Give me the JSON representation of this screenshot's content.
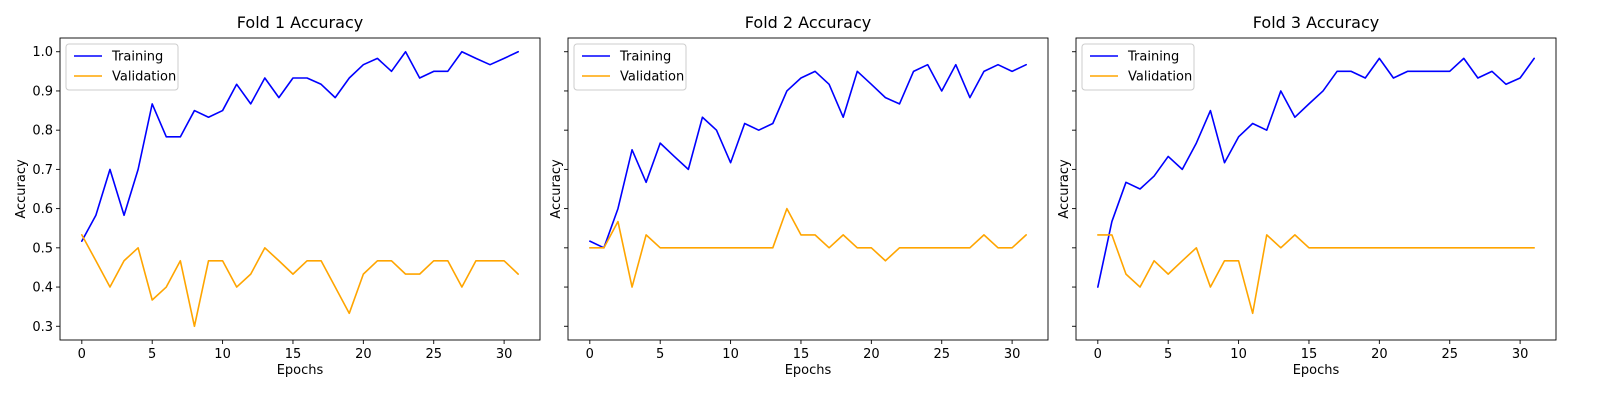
{
  "chart_data": [
    {
      "type": "line",
      "title": "Fold 1 Accuracy",
      "xlabel": "Epochs",
      "ylabel": "Accuracy",
      "xlim": [
        -1.55,
        32.55
      ],
      "ylim": [
        0.265,
        1.035
      ],
      "xticks": [
        0,
        5,
        10,
        15,
        20,
        25,
        30
      ],
      "yticks": [
        0.3,
        0.4,
        0.5,
        0.6,
        0.7,
        0.8,
        0.9,
        1.0
      ],
      "ytick_labels": [
        "0.3",
        "0.4",
        "0.5",
        "0.6",
        "0.7",
        "0.8",
        "0.9",
        "1.0"
      ],
      "grid": false,
      "legend": "top-left",
      "x": [
        0,
        1,
        2,
        3,
        4,
        5,
        6,
        7,
        8,
        9,
        10,
        11,
        12,
        13,
        14,
        15,
        16,
        17,
        18,
        19,
        20,
        21,
        22,
        23,
        24,
        25,
        26,
        27,
        28,
        29,
        30,
        31
      ],
      "series": [
        {
          "name": "Training",
          "color": "#0000ff",
          "values": [
            0.517,
            0.583,
            0.7,
            0.583,
            0.7,
            0.867,
            0.783,
            0.783,
            0.85,
            0.833,
            0.85,
            0.917,
            0.867,
            0.933,
            0.883,
            0.933,
            0.933,
            0.917,
            0.883,
            0.933,
            0.967,
            0.983,
            0.95,
            1.0,
            0.933,
            0.95,
            0.95,
            1.0,
            0.983,
            0.967,
            0.983,
            1.0
          ]
        },
        {
          "name": "Validation",
          "color": "#ffa500",
          "values": [
            0.533,
            0.467,
            0.4,
            0.467,
            0.5,
            0.367,
            0.4,
            0.467,
            0.3,
            0.467,
            0.467,
            0.4,
            0.433,
            0.5,
            0.467,
            0.433,
            0.467,
            0.467,
            0.4,
            0.333,
            0.433,
            0.467,
            0.467,
            0.433,
            0.433,
            0.467,
            0.467,
            0.4,
            0.467,
            0.467,
            0.467,
            0.433
          ]
        }
      ]
    },
    {
      "type": "line",
      "title": "Fold 2 Accuracy",
      "xlabel": "Epochs",
      "ylabel": "Accuracy",
      "xlim": [
        -1.55,
        32.55
      ],
      "ylim": [
        0.265,
        1.035
      ],
      "xticks": [
        0,
        5,
        10,
        15,
        20,
        25,
        30
      ],
      "yticks": [
        0.3,
        0.4,
        0.5,
        0.6,
        0.7,
        0.8,
        0.9,
        1.0
      ],
      "ytick_labels": [],
      "grid": false,
      "legend": "top-left",
      "x": [
        0,
        1,
        2,
        3,
        4,
        5,
        6,
        7,
        8,
        9,
        10,
        11,
        12,
        13,
        14,
        15,
        16,
        17,
        18,
        19,
        20,
        21,
        22,
        23,
        24,
        25,
        26,
        27,
        28,
        29,
        30,
        31
      ],
      "series": [
        {
          "name": "Training",
          "color": "#0000ff",
          "values": [
            0.517,
            0.5,
            0.6,
            0.75,
            0.667,
            0.767,
            0.733,
            0.7,
            0.833,
            0.8,
            0.717,
            0.817,
            0.8,
            0.817,
            0.9,
            0.933,
            0.95,
            0.917,
            0.833,
            0.95,
            0.917,
            0.883,
            0.867,
            0.95,
            0.967,
            0.9,
            0.967,
            0.883,
            0.95,
            0.967,
            0.95,
            0.967
          ]
        },
        {
          "name": "Validation",
          "color": "#ffa500",
          "values": [
            0.5,
            0.5,
            0.567,
            0.4,
            0.533,
            0.5,
            0.5,
            0.5,
            0.5,
            0.5,
            0.5,
            0.5,
            0.5,
            0.5,
            0.6,
            0.533,
            0.533,
            0.5,
            0.533,
            0.5,
            0.5,
            0.467,
            0.5,
            0.5,
            0.5,
            0.5,
            0.5,
            0.5,
            0.533,
            0.5,
            0.5,
            0.533
          ]
        }
      ]
    },
    {
      "type": "line",
      "title": "Fold 3 Accuracy",
      "xlabel": "Epochs",
      "ylabel": "Accuracy",
      "xlim": [
        -1.55,
        32.55
      ],
      "ylim": [
        0.265,
        1.035
      ],
      "xticks": [
        0,
        5,
        10,
        15,
        20,
        25,
        30
      ],
      "yticks": [
        0.3,
        0.4,
        0.5,
        0.6,
        0.7,
        0.8,
        0.9,
        1.0
      ],
      "ytick_labels": [],
      "grid": false,
      "legend": "top-left",
      "x": [
        0,
        1,
        2,
        3,
        4,
        5,
        6,
        7,
        8,
        9,
        10,
        11,
        12,
        13,
        14,
        15,
        16,
        17,
        18,
        19,
        20,
        21,
        22,
        23,
        24,
        25,
        26,
        27,
        28,
        29,
        30,
        31
      ],
      "series": [
        {
          "name": "Training",
          "color": "#0000ff",
          "values": [
            0.4,
            0.567,
            0.667,
            0.65,
            0.683,
            0.733,
            0.7,
            0.767,
            0.85,
            0.717,
            0.783,
            0.817,
            0.8,
            0.9,
            0.833,
            0.867,
            0.9,
            0.95,
            0.95,
            0.933,
            0.983,
            0.933,
            0.95,
            0.95,
            0.95,
            0.95,
            0.983,
            0.933,
            0.95,
            0.917,
            0.933,
            0.983
          ]
        },
        {
          "name": "Validation",
          "color": "#ffa500",
          "values": [
            0.533,
            0.533,
            0.433,
            0.4,
            0.467,
            0.433,
            0.467,
            0.5,
            0.4,
            0.467,
            0.467,
            0.333,
            0.533,
            0.5,
            0.533,
            0.5,
            0.5,
            0.5,
            0.5,
            0.5,
            0.5,
            0.5,
            0.5,
            0.5,
            0.5,
            0.5,
            0.5,
            0.5,
            0.5,
            0.5,
            0.5,
            0.5
          ]
        }
      ]
    }
  ]
}
